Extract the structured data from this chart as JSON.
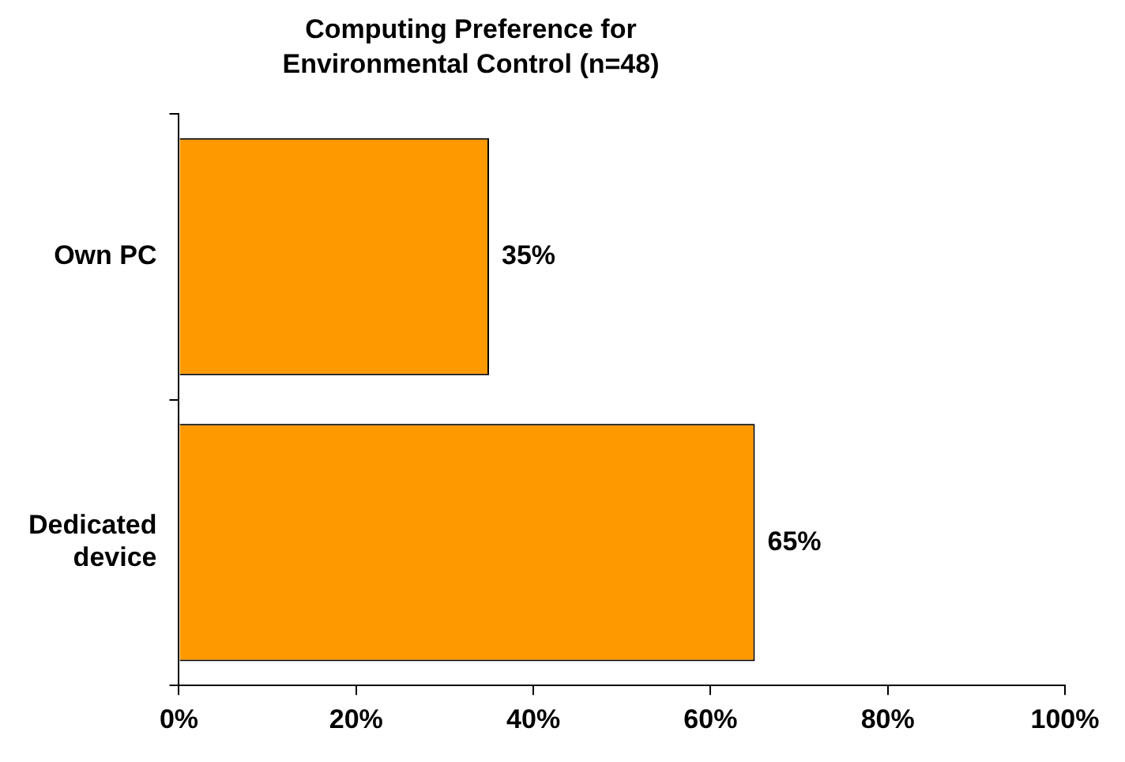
{
  "chart_data": {
    "type": "bar",
    "orientation": "horizontal",
    "title": "Computing Preference for Environmental Control (n=48)",
    "categories": [
      "Own PC",
      "Dedicated device"
    ],
    "values": [
      35,
      65
    ],
    "color": "#ff9900",
    "value_labels": [
      "35%",
      "65%"
    ],
    "xlim": [
      0,
      100
    ],
    "xticks": [
      {
        "value": 0,
        "label": "0%"
      },
      {
        "value": 20,
        "label": "20%"
      },
      {
        "value": 40,
        "label": "40%"
      },
      {
        "value": 60,
        "label": "60%"
      },
      {
        "value": 80,
        "label": "80%"
      },
      {
        "value": 100,
        "label": "100%"
      }
    ],
    "grid": false,
    "legend": false
  }
}
